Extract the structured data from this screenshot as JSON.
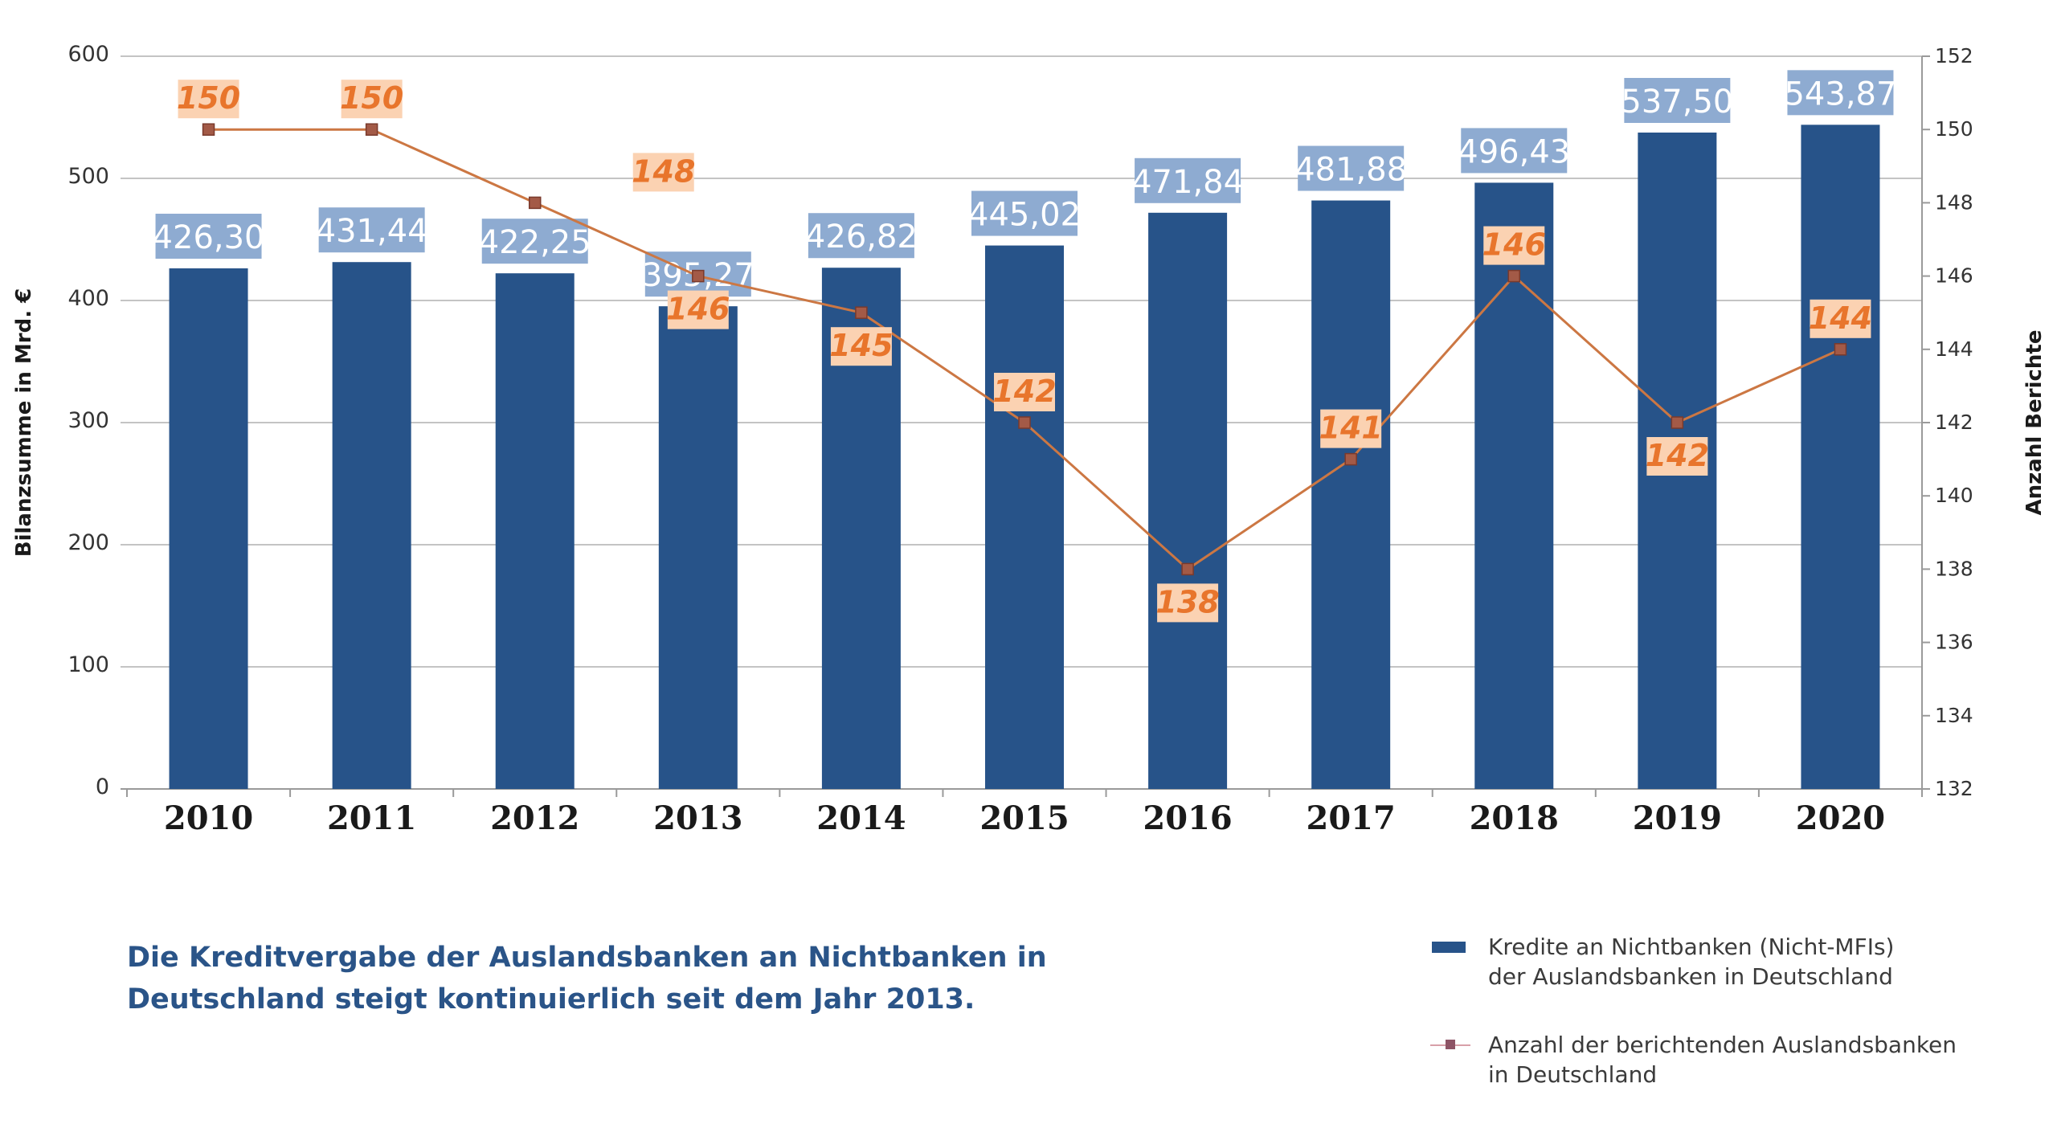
{
  "chart_data": {
    "type": "bar",
    "categories": [
      "2010",
      "2011",
      "2012",
      "2013",
      "2014",
      "2015",
      "2016",
      "2017",
      "2018",
      "2019",
      "2020"
    ],
    "series": [
      {
        "name": "Kredite an Nichtbanken (Nicht-MFIs) der Auslandsbanken in Deutschland",
        "type": "bar",
        "axis": "left",
        "values": [
          426.3,
          431.44,
          422.25,
          395.27,
          426.82,
          445.02,
          471.84,
          481.88,
          496.43,
          537.5,
          543.87
        ],
        "labels": [
          "426,30",
          "431,44",
          "422,25",
          "395,27",
          "426,82",
          "445,02",
          "471,84",
          "481,88",
          "496,43",
          "537,50",
          "543,87"
        ]
      },
      {
        "name": "Anzahl der berichtenden Auslandsbanken in Deutschland",
        "type": "line",
        "axis": "right",
        "values": [
          150,
          150,
          148,
          146,
          145,
          142,
          138,
          141,
          146,
          142,
          144
        ],
        "labels": [
          "150",
          "150",
          "148",
          "146",
          "145",
          "142",
          "138",
          "141",
          "146",
          "142",
          "144"
        ]
      }
    ],
    "ylabel": "Bilanzsumme in Mrd. €",
    "y2label": "Anzahl Berichte",
    "ylim": [
      0,
      600
    ],
    "y2lim": [
      132,
      152
    ],
    "yticks": [
      "0",
      "100",
      "200",
      "300",
      "400",
      "500",
      "600"
    ],
    "y2ticks": [
      "132",
      "134",
      "136",
      "138",
      "140",
      "142",
      "144",
      "146",
      "148",
      "150",
      "152"
    ],
    "grid": true,
    "legend_position": "bottom-right",
    "colors": {
      "bar": "#275389",
      "bar_label_bg": "#8eabd1",
      "line": "#cc7743",
      "marker": "#a35a47",
      "line_label_bg": "#fbd2b2",
      "line_label_text": "#e8752c"
    }
  },
  "caption": {
    "line1": "Die Kreditvergabe der Auslandsbanken an Nichtbanken in",
    "line2": "Deutschland steigt kontinuierlich seit dem Jahr 2013."
  },
  "legend": {
    "bar_line1": "Kredite an Nichtbanken (Nicht-MFIs)",
    "bar_line2": "der Auslandsbanken in Deutschland",
    "line_line1": "Anzahl der berichtenden Auslandsbanken",
    "line_line2": "in Deutschland"
  }
}
